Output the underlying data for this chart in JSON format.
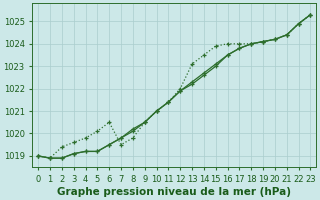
{
  "x": [
    0,
    1,
    2,
    3,
    4,
    5,
    6,
    7,
    8,
    9,
    10,
    11,
    12,
    13,
    14,
    15,
    16,
    17,
    18,
    19,
    20,
    21,
    22,
    23
  ],
  "line1": [
    1019.0,
    1018.9,
    1018.9,
    1019.1,
    1019.2,
    1019.2,
    1019.5,
    1019.8,
    1020.1,
    1020.5,
    1021.0,
    1021.4,
    1021.9,
    1022.3,
    1022.7,
    1023.1,
    1023.5,
    1023.8,
    1024.0,
    1024.1,
    1024.2,
    1024.4,
    1024.9,
    1025.3
  ],
  "line2": [
    1019.0,
    1018.9,
    1018.9,
    1019.1,
    1019.2,
    1019.2,
    1019.5,
    1019.8,
    1020.2,
    1020.5,
    1021.0,
    1021.4,
    1021.9,
    1022.2,
    1022.6,
    1023.0,
    1023.5,
    1023.8,
    1024.0,
    1024.1,
    1024.2,
    1024.4,
    1024.9,
    1025.3
  ],
  "line3_dotted": [
    1019.0,
    1018.9,
    1019.4,
    1019.6,
    1019.8,
    1020.1,
    1020.5,
    1019.5,
    1019.8,
    1020.5,
    1021.0,
    1021.4,
    1022.0,
    1023.1,
    1023.5,
    1023.9,
    1024.0,
    1024.0,
    1024.0,
    1024.1,
    1024.2,
    1024.4,
    1024.9,
    1025.3
  ],
  "line_color": "#2d6e2d",
  "marker": "+",
  "bg_color": "#cce8e8",
  "grid_color": "#aacece",
  "ylabel_vals": [
    1019,
    1020,
    1021,
    1022,
    1023,
    1024,
    1025
  ],
  "xlabel": "Graphe pression niveau de la mer (hPa)",
  "ylim": [
    1018.5,
    1025.8
  ],
  "xlim": [
    -0.5,
    23.5
  ],
  "label_color": "#1a5c1a",
  "xlabel_fontsize": 7.5,
  "tick_fontsize": 6
}
